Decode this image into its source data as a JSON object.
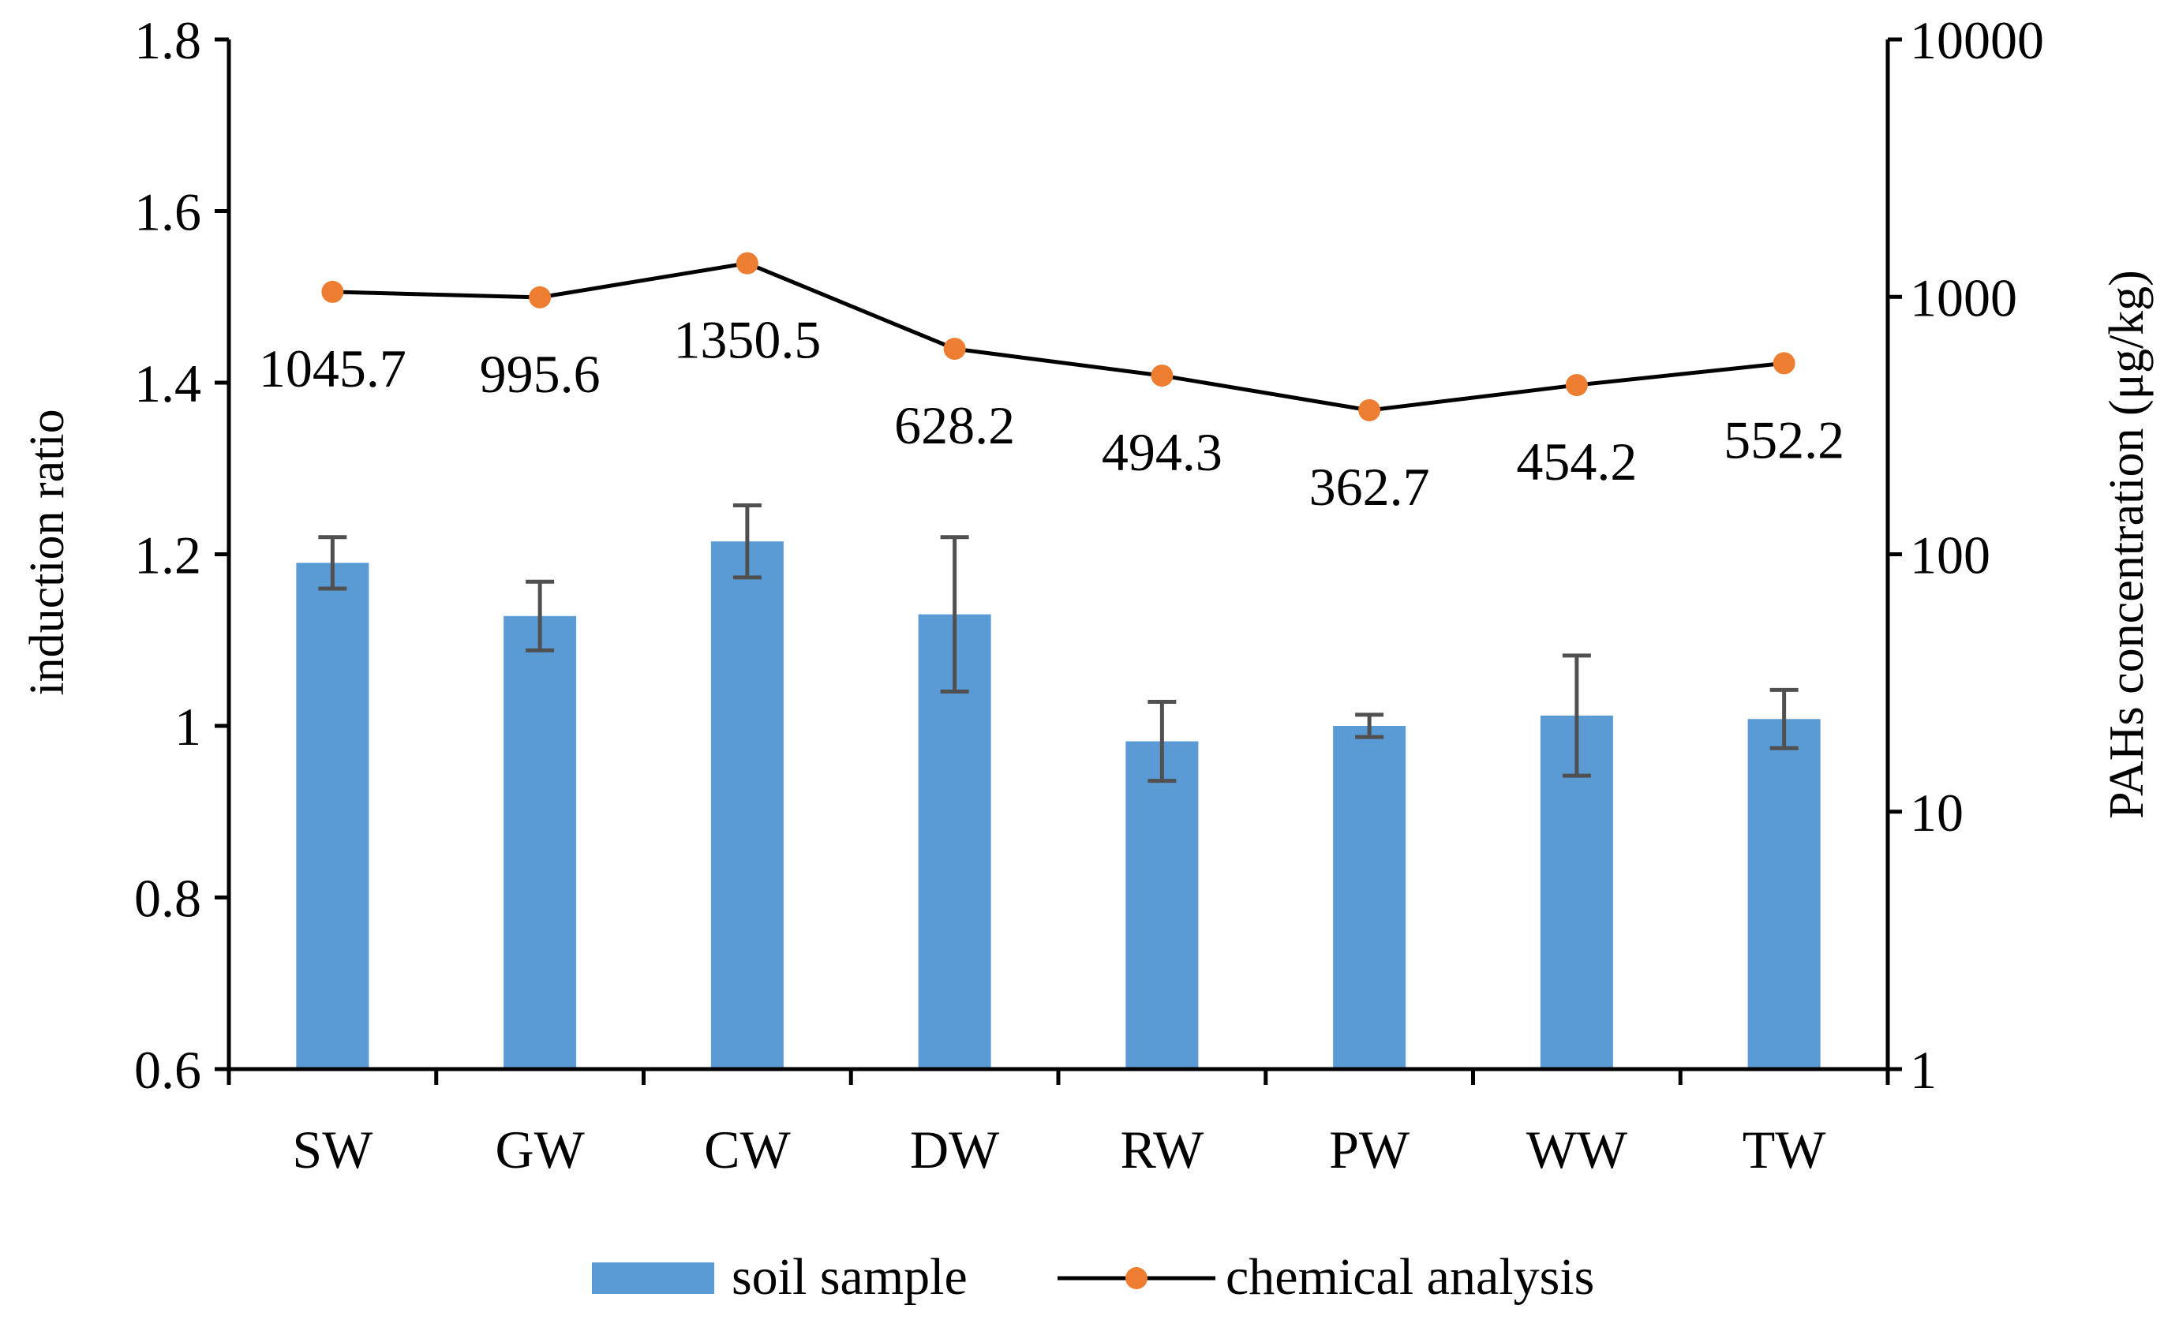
{
  "chart_data": {
    "type": "bar+line",
    "categories": [
      "SW",
      "GW",
      "CW",
      "DW",
      "RW",
      "PW",
      "WW",
      "TW"
    ],
    "left_axis": {
      "label": "induction ratio",
      "ylim": [
        0.6,
        1.8
      ],
      "ticks": [
        0.6,
        0.8,
        1,
        1.2,
        1.4,
        1.6,
        1.8
      ],
      "tick_labels": [
        "0.6",
        "0.8",
        "1",
        "1.2",
        "1.4",
        "1.6",
        "1.8"
      ]
    },
    "right_axis": {
      "label": "PAHs concentration (μg/kg)",
      "scale": "log",
      "ylim": [
        1,
        10000
      ],
      "ticks": [
        1,
        10,
        100,
        1000,
        10000
      ],
      "tick_labels": [
        "1",
        "10",
        "100",
        "1000",
        "10000"
      ]
    },
    "series": [
      {
        "name": "soil sample",
        "type": "bar",
        "axis": "left",
        "color": "#5B9BD5",
        "values": [
          1.19,
          1.128,
          1.215,
          1.13,
          0.982,
          1.0,
          1.012,
          1.008
        ],
        "errors": [
          0.03,
          0.04,
          0.042,
          0.09,
          0.046,
          0.013,
          0.07,
          0.034
        ]
      },
      {
        "name": "chemical analysis",
        "type": "line",
        "axis": "right",
        "line_color": "#000000",
        "marker_color": "#ED7D31",
        "values": [
          1045.7,
          995.6,
          1350.5,
          628.2,
          494.3,
          362.7,
          454.2,
          552.2
        ],
        "labels": [
          "1045.7",
          "995.6",
          "1350.5",
          "628.2",
          "494.3",
          "362.7",
          "454.2",
          "552.2"
        ]
      }
    ],
    "legend": [
      "soil sample",
      "chemical analysis"
    ],
    "legend_position": "bottom",
    "grid": false
  }
}
